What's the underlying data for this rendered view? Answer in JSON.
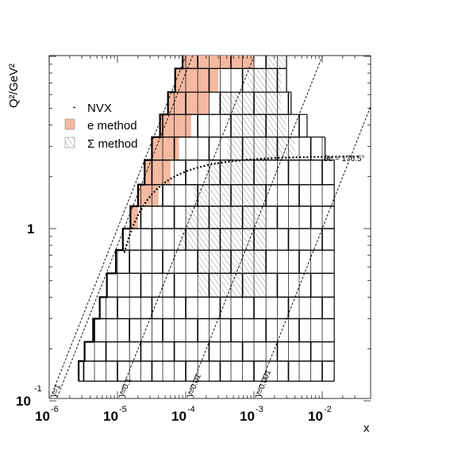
{
  "chart_data": {
    "type": "kinematic-plane",
    "xlabel": "x",
    "ylabel": "Q²/GeV²",
    "x_scale": "log",
    "y_scale": "log",
    "xlim": [
      1e-06,
      0.03
    ],
    "ylim": [
      0.1,
      13
    ],
    "x_ticks": [
      {
        "base": "10",
        "exp": "-6",
        "value": 1e-06
      },
      {
        "base": "10",
        "exp": "-5",
        "value": 1e-05
      },
      {
        "base": "10",
        "exp": "-4",
        "value": 0.0001
      },
      {
        "base": "10",
        "exp": "-3",
        "value": 0.001
      },
      {
        "base": "10",
        "exp": "-2",
        "value": 0.01
      }
    ],
    "y_ticks": [
      {
        "base": "10",
        "exp": "-1",
        "value": 0.1
      },
      {
        "base": "1",
        "exp": "",
        "value": 1
      }
    ],
    "legend": {
      "placement": "top-left",
      "entries": [
        {
          "label": "NVX",
          "style": "thick outline"
        },
        {
          "label": "e method",
          "style": "salmon fill",
          "color": "#f4b9a0"
        },
        {
          "label": "Σ method",
          "style": "diagonal hatch"
        }
      ]
    },
    "y_lines": [
      {
        "label": "y=1",
        "y": 1
      },
      {
        "label": "y=0.1",
        "y": 0.1
      },
      {
        "label": "y=0.01",
        "y": 0.01
      },
      {
        "label": "y=0.001",
        "y": 0.001
      }
    ],
    "theta_curve": {
      "label": "θe = 176.5°",
      "theta_deg": 176.5
    },
    "colors": {
      "e_method": "#f4b9a0",
      "frame": "#000000"
    },
    "grid": false
  }
}
